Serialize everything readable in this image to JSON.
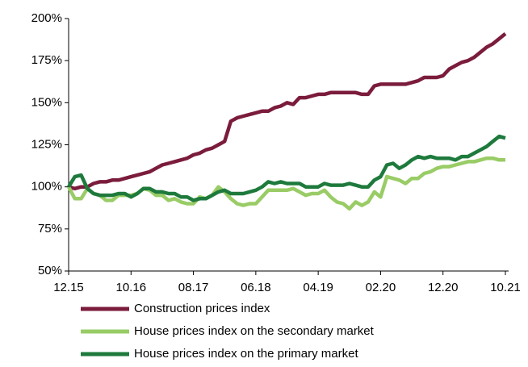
{
  "chart_data": {
    "type": "line",
    "categories": [
      "12.15",
      null,
      null,
      null,
      null,
      null,
      null,
      null,
      null,
      null,
      "10.16",
      null,
      null,
      null,
      null,
      null,
      null,
      null,
      null,
      null,
      "08.17",
      null,
      null,
      null,
      null,
      null,
      null,
      null,
      null,
      null,
      "06.18",
      null,
      null,
      null,
      null,
      null,
      null,
      null,
      null,
      null,
      "04.19",
      null,
      null,
      null,
      null,
      null,
      null,
      null,
      null,
      null,
      "02.20",
      null,
      null,
      null,
      null,
      null,
      null,
      null,
      null,
      null,
      "12.20",
      null,
      null,
      null,
      null,
      null,
      null,
      null,
      null,
      null,
      "10.21"
    ],
    "series": [
      {
        "name": "Construction prices index",
        "color": "#7b1c3c",
        "values": [
          100,
          99,
          100,
          100,
          102,
          103,
          103,
          104,
          104,
          105,
          106,
          107,
          108,
          109,
          111,
          113,
          114,
          115,
          116,
          117,
          119,
          120,
          122,
          123,
          125,
          127,
          139,
          141,
          142,
          143,
          144,
          145,
          145,
          147,
          148,
          150,
          149,
          153,
          153,
          154,
          155,
          155,
          156,
          156,
          156,
          156,
          156,
          155,
          155,
          160,
          161,
          161,
          161,
          161,
          161,
          162,
          163,
          165,
          165,
          165,
          166,
          170,
          172,
          174,
          175,
          177,
          180,
          183,
          185,
          188,
          191
        ]
      },
      {
        "name": "House prices index on the secondary market",
        "color": "#99cc66",
        "values": [
          100,
          93,
          93,
          99,
          96,
          95,
          92,
          92,
          95,
          95,
          95,
          96,
          99,
          98,
          95,
          95,
          92,
          93,
          91,
          90,
          90,
          94,
          93,
          95,
          100,
          97,
          93,
          90,
          89,
          90,
          90,
          94,
          98,
          98,
          98,
          98,
          99,
          97,
          95,
          96,
          96,
          98,
          94,
          91,
          90,
          87,
          91,
          89,
          91,
          97,
          94,
          106,
          105,
          104,
          102,
          105,
          105,
          108,
          109,
          111,
          112,
          112,
          113,
          114,
          115,
          115,
          116,
          117,
          117,
          116,
          116
        ]
      },
      {
        "name": "House prices index on the primary market",
        "color": "#1e7a3c",
        "values": [
          100,
          106,
          107,
          99,
          96,
          95,
          95,
          95,
          96,
          96,
          94,
          96,
          99,
          99,
          97,
          97,
          96,
          96,
          94,
          94,
          92,
          93,
          93,
          95,
          97,
          98,
          96,
          96,
          96,
          97,
          98,
          100,
          103,
          102,
          103,
          102,
          102,
          102,
          100,
          100,
          100,
          102,
          101,
          101,
          101,
          102,
          101,
          100,
          100,
          104,
          106,
          113,
          114,
          111,
          113,
          116,
          118,
          117,
          118,
          117,
          117,
          117,
          116,
          118,
          118,
          120,
          122,
          124,
          127,
          130,
          129
        ]
      }
    ],
    "ylim": [
      50,
      200
    ],
    "yticks": [
      {
        "value": 50,
        "label": "50%"
      },
      {
        "value": 75,
        "label": "75%"
      },
      {
        "value": 100,
        "label": "100%"
      },
      {
        "value": 125,
        "label": "125%"
      },
      {
        "value": 150,
        "label": "150%"
      },
      {
        "value": 175,
        "label": "175%"
      },
      {
        "value": 200,
        "label": "200%"
      }
    ],
    "grid": false,
    "legend": "bottom"
  }
}
